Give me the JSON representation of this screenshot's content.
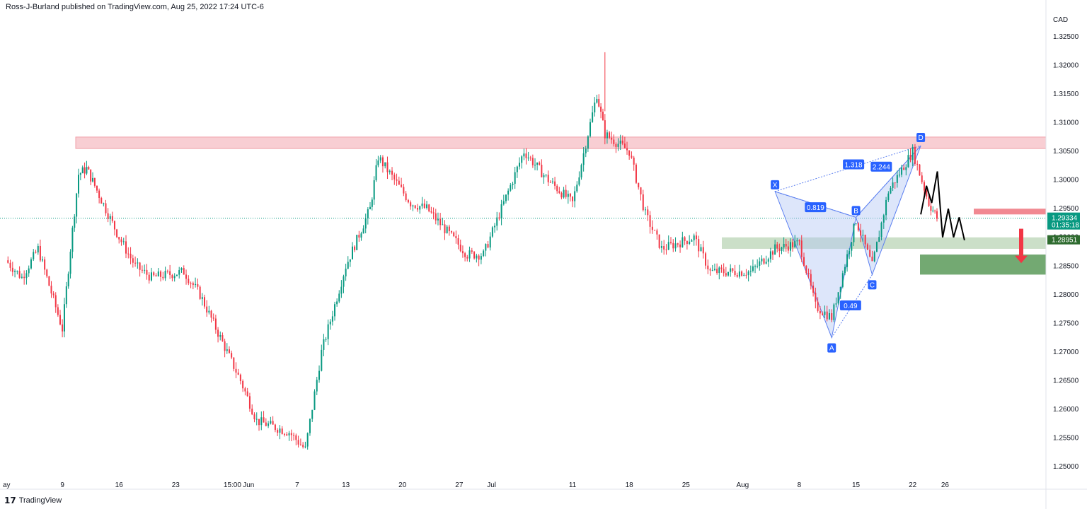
{
  "header": {
    "publish_line": "Ross-J-Burland published on TradingView.com, Aug 25, 2022 17:24 UTC-6"
  },
  "footer": {
    "brand": "TradingView"
  },
  "axis": {
    "currency": "CAD",
    "price_ticks": [
      "1.32500",
      "1.32000",
      "1.31500",
      "1.31000",
      "1.30500",
      "1.30000",
      "1.29500",
      "1.29000",
      "1.28500",
      "1.28000",
      "1.27500",
      "1.27000",
      "1.26500",
      "1.26000",
      "1.25500",
      "1.25000"
    ],
    "date_ticks": [
      "ay",
      "9",
      "16",
      "23",
      "15:00",
      "Jun",
      "7",
      "13",
      "20",
      "27",
      "Jul",
      "11",
      "18",
      "25",
      "Aug",
      "8",
      "15",
      "22",
      "26"
    ]
  },
  "price_labels": {
    "last_price": "1.29334",
    "countdown": "01:35:18",
    "level": "1.28951"
  },
  "pattern_labels": {
    "X": "X",
    "A": "A",
    "B": "B",
    "C": "C",
    "D": "D",
    "r1": "0.819",
    "r2": "1.318",
    "r3": "2.244",
    "r4": "0.49"
  },
  "colors": {
    "up": "#089981",
    "down": "#f23645",
    "pattern_fill": "#b3c7f5",
    "resistance_zone": "#f7c6cb",
    "support_zone": "#5b9a59",
    "label_blue": "#2962ff"
  },
  "chart_data": {
    "type": "candlestick",
    "symbol_currency": "CAD",
    "y_range": [
      1.2475,
      1.3275
    ],
    "series_daily_close_approx": [
      {
        "x": "May 2",
        "y": 1.286
      },
      {
        "x": "May 4",
        "y": 1.283
      },
      {
        "x": "May 6",
        "y": 1.288
      },
      {
        "x": "May 9",
        "y": 1.274
      },
      {
        "x": "May 10",
        "y": 1.288
      },
      {
        "x": "May 11",
        "y": 1.301
      },
      {
        "x": "May 12",
        "y": 1.302
      },
      {
        "x": "May 13",
        "y": 1.299
      },
      {
        "x": "May 16",
        "y": 1.29
      },
      {
        "x": "May 18",
        "y": 1.285
      },
      {
        "x": "May 20",
        "y": 1.283
      },
      {
        "x": "May 24",
        "y": 1.284
      },
      {
        "x": "May 26",
        "y": 1.28
      },
      {
        "x": "May 31",
        "y": 1.265
      },
      {
        "x": "Jun 2",
        "y": 1.258
      },
      {
        "x": "Jun 6",
        "y": 1.256
      },
      {
        "x": "Jun 8",
        "y": 1.253
      },
      {
        "x": "Jun 10",
        "y": 1.27
      },
      {
        "x": "Jun 13",
        "y": 1.285
      },
      {
        "x": "Jun 16",
        "y": 1.295
      },
      {
        "x": "Jun 17",
        "y": 1.304
      },
      {
        "x": "Jun 21",
        "y": 1.296
      },
      {
        "x": "Jun 23",
        "y": 1.295
      },
      {
        "x": "Jun 28",
        "y": 1.287
      },
      {
        "x": "Jun 30",
        "y": 1.287
      },
      {
        "x": "Jul 5",
        "y": 1.305
      },
      {
        "x": "Jul 8",
        "y": 1.3
      },
      {
        "x": "Jul 11",
        "y": 1.296
      },
      {
        "x": "Jul 14",
        "y": 1.315
      },
      {
        "x": "Jul 15",
        "y": 1.308
      },
      {
        "x": "Jul 18",
        "y": 1.305
      },
      {
        "x": "Jul 20",
        "y": 1.294
      },
      {
        "x": "Jul 22",
        "y": 1.288
      },
      {
        "x": "Jul 26",
        "y": 1.29
      },
      {
        "x": "Jul 28",
        "y": 1.284
      },
      {
        "x": "Aug 2",
        "y": 1.284
      },
      {
        "x": "Aug 5",
        "y": 1.288
      },
      {
        "x": "Aug 8",
        "y": 1.289
      },
      {
        "x": "Aug 10",
        "y": 1.278
      },
      {
        "x": "Aug 12",
        "y": 1.276
      },
      {
        "x": "Aug 15",
        "y": 1.293
      },
      {
        "x": "Aug 17",
        "y": 1.285
      },
      {
        "x": "Aug 19",
        "y": 1.298
      },
      {
        "x": "Aug 22",
        "y": 1.305
      },
      {
        "x": "Aug 24",
        "y": 1.296
      },
      {
        "x": "Aug 25",
        "y": 1.29334
      }
    ],
    "harmonic_pattern": {
      "X": {
        "x": "Aug 5",
        "y": 1.298
      },
      "A": {
        "x": "Aug 12",
        "y": 1.2725
      },
      "B": {
        "x": "Aug 15",
        "y": 1.2935
      },
      "C": {
        "x": "Aug 17",
        "y": 1.2835
      },
      "D": {
        "x": "Aug 23",
        "y": 1.306
      }
    },
    "zones": [
      {
        "name": "resistance",
        "y": [
          1.3055,
          1.3075
        ]
      },
      {
        "name": "support-light",
        "y": [
          1.288,
          1.29
        ]
      },
      {
        "name": "support-dark",
        "y": [
          1.2835,
          1.287
        ]
      },
      {
        "name": "small-resistance",
        "y": [
          1.294,
          1.295
        ]
      }
    ]
  }
}
